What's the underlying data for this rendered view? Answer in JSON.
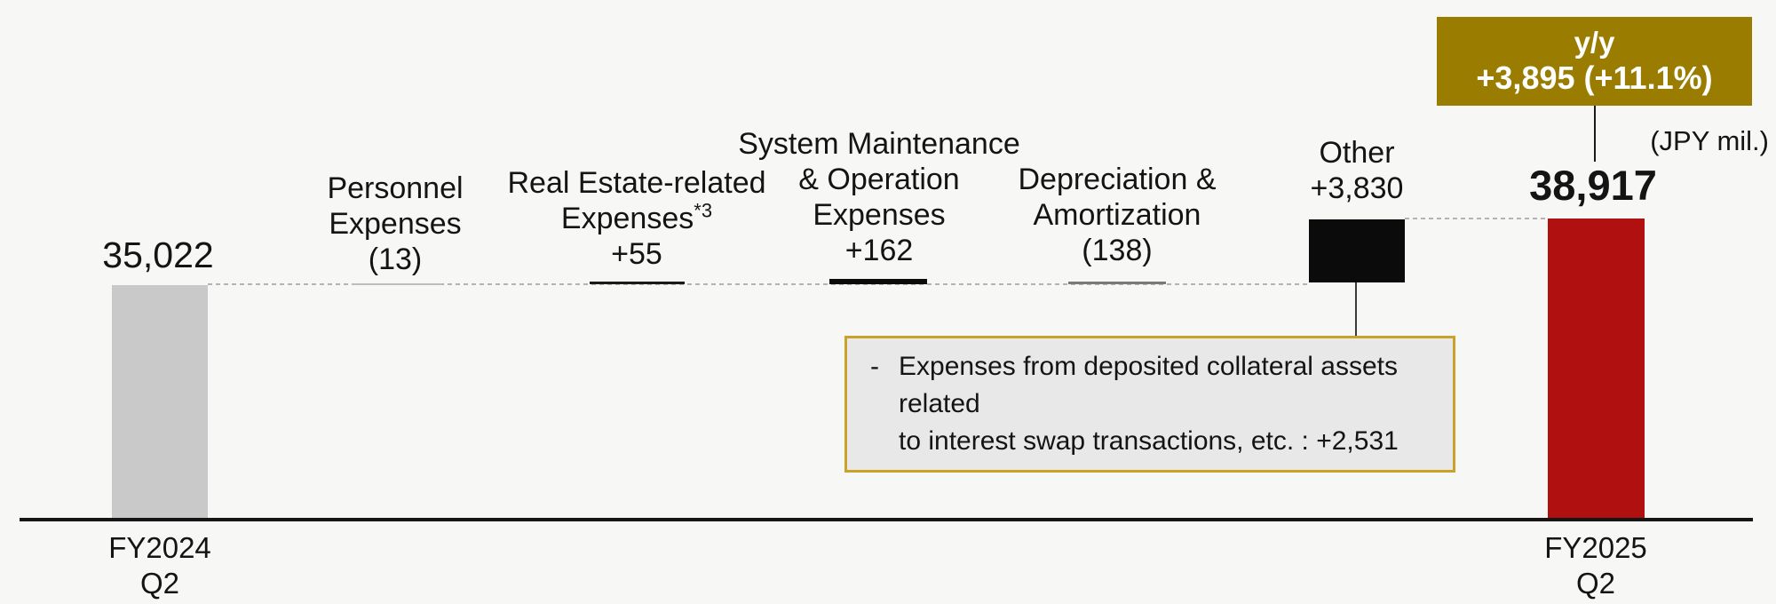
{
  "unit_label": "(JPY mil.)",
  "yoy_badge": {
    "line1": "y/y",
    "line2": "+3,895 (+11.1%)"
  },
  "start_bar": {
    "value_label": "35,022",
    "axis_line1": "FY2024",
    "axis_line2": "Q2"
  },
  "end_bar": {
    "value_label": "38,917",
    "axis_line1": "FY2025",
    "axis_line2": "Q2"
  },
  "labels": {
    "personnel": {
      "l1": "Personnel",
      "l2": "Expenses",
      "l3": "(13)"
    },
    "real_estate": {
      "l1": "Real Estate-related",
      "l2": "Expenses",
      "l2_sup": "*3",
      "l3": "+55"
    },
    "system": {
      "l1": "System Maintenance",
      "l2": "& Operation",
      "l3": "Expenses",
      "l4": "+162"
    },
    "depreciation": {
      "l1": "Depreciation &",
      "l2": "Amortization",
      "l3": "(138)"
    },
    "other": {
      "l1": "Other",
      "l2": "+3,830"
    }
  },
  "callout": {
    "bullet": "-",
    "line1": "Expenses from deposited collateral assets related",
    "line2": "to interest swap transactions, etc. : +2,531"
  },
  "colors": {
    "start_bar": "#C9C9C9",
    "end_bar": "#B01010",
    "other_bar": "#0B0B0B",
    "badge": "#9A7D00",
    "callout_border": "#C9A227",
    "callout_fill": "#E8E8E8",
    "background": "#F7F7F6"
  },
  "chart_data": {
    "type": "bar",
    "subtype": "waterfall",
    "unit": "JPY mil.",
    "categories": [
      "FY2024 Q2",
      "Personnel Expenses",
      "Real Estate-related Expenses*3",
      "System Maintenance & Operation Expenses",
      "Depreciation & Amortization",
      "Other",
      "FY2025 Q2"
    ],
    "values": [
      35022,
      -13,
      55,
      162,
      -138,
      3830,
      38917
    ],
    "value_labels": [
      "35,022",
      "(13)",
      "+55",
      "+162",
      "(138)",
      "+3,830",
      "38,917"
    ],
    "bar_roles": [
      "total",
      "delta",
      "delta",
      "delta",
      "delta",
      "delta",
      "total"
    ],
    "yoy_change_value": 3895,
    "yoy_change_pct": 11.1,
    "yoy_change_label": "+3,895 (+11.1%)",
    "annotation": "Expenses from deposited collateral assets related to interest swap transactions, etc. : +2,531",
    "negative_format": "parentheses",
    "legend": "none",
    "grid": "off"
  }
}
